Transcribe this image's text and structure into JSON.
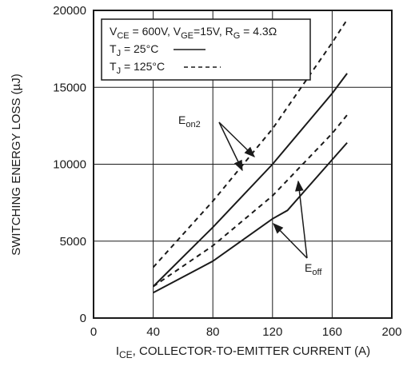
{
  "chart_data": {
    "type": "line",
    "xlabel": {
      "main": "I",
      "sub": "CE",
      "rest": ", COLLECTOR-TO-EMITTER CURRENT (A)"
    },
    "ylabel": "SWITCHING ENERGY LOSS (µJ)",
    "xlim": [
      0,
      200
    ],
    "ylim": [
      0,
      20000
    ],
    "xticks": [
      0,
      40,
      80,
      120,
      160,
      200
    ],
    "yticks": [
      0,
      5000,
      10000,
      15000,
      20000
    ],
    "grid": true,
    "legend": {
      "placement": "top-left",
      "conditions": [
        {
          "t": "V",
          "s": "CE"
        },
        {
          "t": " = 600V, V"
        },
        {
          "s": "GE"
        },
        {
          "t": "=15V, R"
        },
        {
          "s": "G"
        },
        {
          "t": " = 4.3Ω"
        }
      ],
      "entries": [
        {
          "main": "T",
          "sub": "J",
          "rest": " = 25°C",
          "style": "solid"
        },
        {
          "main": "T",
          "sub": "J",
          "rest": " = 125°C",
          "style": "dashed"
        }
      ]
    },
    "series": [
      {
        "label": "Eon2",
        "temp": "25C",
        "style": "solid",
        "x": [
          40,
          80,
          120,
          160,
          170
        ],
        "y": [
          2050,
          5900,
          10000,
          14600,
          15900
        ]
      },
      {
        "label": "Eon2",
        "temp": "125C",
        "style": "dashed",
        "x": [
          40,
          80,
          120,
          160,
          170
        ],
        "y": [
          3300,
          7600,
          12300,
          17900,
          19400
        ]
      },
      {
        "label": "Eoff",
        "temp": "25C",
        "style": "solid",
        "x": [
          40,
          80,
          120,
          130,
          170
        ],
        "y": [
          1650,
          3700,
          6450,
          7000,
          11400
        ]
      },
      {
        "label": "Eoff",
        "temp": "125C",
        "style": "dashed",
        "x": [
          40,
          80,
          120,
          160,
          170
        ],
        "y": [
          2050,
          4700,
          7950,
          12000,
          13200
        ]
      }
    ],
    "annotations": [
      {
        "main": "E",
        "sub": "on2"
      },
      {
        "main": "E",
        "sub": "off"
      }
    ],
    "line_color": "#1a1a1a",
    "grid_color": "#1a1a1a"
  }
}
